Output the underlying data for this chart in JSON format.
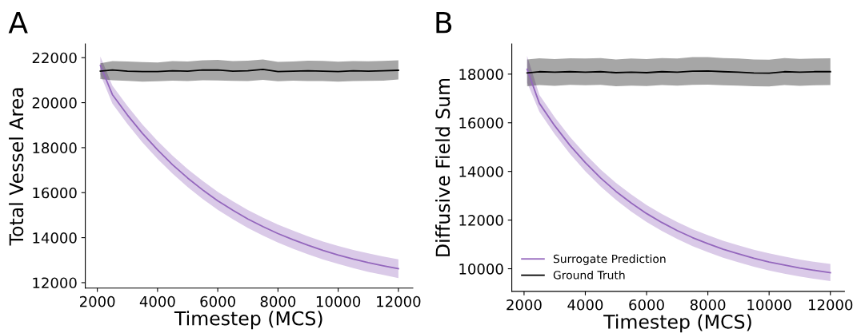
{
  "chart_data": [
    {
      "type": "line",
      "title": "A",
      "xlabel": "Timestep (MCS)",
      "ylabel": "Total Vessel Area",
      "xlim": [
        1600,
        12480
      ],
      "ylim": [
        11760,
        22610
      ],
      "xticks": [
        2000,
        4000,
        6000,
        8000,
        10000,
        12000
      ],
      "yticks": [
        12000,
        14000,
        16000,
        18000,
        20000,
        22000
      ],
      "grid": false,
      "legend": false,
      "marker": "none",
      "line_style": "solid",
      "x": [
        2100,
        2500,
        3000,
        3500,
        4000,
        4500,
        5000,
        5500,
        6000,
        6500,
        7000,
        7500,
        8000,
        8500,
        9000,
        9500,
        10000,
        10500,
        11000,
        11500,
        12000
      ],
      "series": [
        {
          "color": "#9467bd",
          "values": [
            21650,
            20360,
            19450,
            18630,
            17900,
            17240,
            16650,
            16120,
            15640,
            15220,
            14830,
            14490,
            14180,
            13910,
            13660,
            13430,
            13230,
            13050,
            12890,
            12750,
            12620
          ],
          "lower": [
            21250,
            19960,
            19050,
            18230,
            17500,
            16840,
            16250,
            15720,
            15240,
            14820,
            14430,
            14090,
            13780,
            13510,
            13260,
            13030,
            12830,
            12650,
            12480,
            12340,
            12200
          ],
          "upper": [
            22050,
            20760,
            19850,
            19030,
            18300,
            17640,
            17050,
            16520,
            16040,
            15620,
            15230,
            14890,
            14580,
            14310,
            14060,
            13830,
            13630,
            13450,
            13300,
            13160,
            13040
          ]
        },
        {
          "color": "#000000",
          "values": [
            21400,
            21450,
            21400,
            21380,
            21380,
            21420,
            21400,
            21450,
            21450,
            21400,
            21420,
            21480,
            21380,
            21400,
            21420,
            21400,
            21380,
            21420,
            21400,
            21420,
            21440
          ],
          "lower": [
            21050,
            21000,
            20970,
            20930,
            20950,
            20980,
            20960,
            21000,
            20990,
            20970,
            20960,
            21010,
            20950,
            20980,
            20960,
            20960,
            20930,
            20960,
            20970,
            20980,
            21030
          ],
          "upper": [
            21750,
            21850,
            21830,
            21800,
            21790,
            21850,
            21830,
            21880,
            21900,
            21850,
            21870,
            21920,
            21810,
            21830,
            21870,
            21860,
            21820,
            21850,
            21840,
            21860,
            21880
          ]
        }
      ]
    },
    {
      "type": "line",
      "title": "B",
      "xlabel": "Timestep (MCS)",
      "ylabel": "Diffusive Field Sum",
      "xlim": [
        1600,
        12460
      ],
      "ylim": [
        9070,
        19240
      ],
      "xticks": [
        2000,
        4000,
        6000,
        8000,
        10000,
        12000
      ],
      "yticks": [
        10000,
        12000,
        14000,
        16000,
        18000
      ],
      "grid": false,
      "legend": "lower left",
      "marker": "none",
      "line_style": "solid",
      "x": [
        2100,
        2500,
        3000,
        3500,
        4000,
        4500,
        5000,
        5500,
        6000,
        6500,
        7000,
        7500,
        8000,
        8500,
        9000,
        9500,
        10000,
        10500,
        11000,
        11500,
        12000
      ],
      "series": [
        {
          "name": "Surrogate Prediction",
          "color": "#9467bd",
          "values": [
            18200,
            16800,
            15880,
            15070,
            14360,
            13730,
            13180,
            12700,
            12270,
            11900,
            11570,
            11280,
            11030,
            10800,
            10610,
            10430,
            10280,
            10150,
            10030,
            9930,
            9840
          ],
          "lower": [
            17650,
            16450,
            15530,
            14720,
            14010,
            13380,
            12830,
            12350,
            11920,
            11550,
            11220,
            10930,
            10680,
            10450,
            10260,
            10080,
            9930,
            9800,
            9680,
            9580,
            9490
          ],
          "upper": [
            18750,
            17150,
            16230,
            15420,
            14710,
            14080,
            13530,
            13050,
            12620,
            12250,
            11920,
            11630,
            11380,
            11150,
            10960,
            10780,
            10630,
            10500,
            10380,
            10280,
            10200
          ]
        },
        {
          "name": "Ground Truth",
          "color": "#000000",
          "values": [
            18050,
            18100,
            18080,
            18100,
            18080,
            18100,
            18060,
            18080,
            18060,
            18100,
            18080,
            18120,
            18130,
            18100,
            18080,
            18050,
            18040,
            18100,
            18080,
            18100,
            18100
          ],
          "lower": [
            17500,
            17550,
            17520,
            17560,
            17540,
            17560,
            17500,
            17530,
            17510,
            17550,
            17530,
            17560,
            17570,
            17540,
            17530,
            17500,
            17490,
            17550,
            17520,
            17540,
            17550
          ],
          "upper": [
            18600,
            18650,
            18620,
            18650,
            18640,
            18660,
            18600,
            18640,
            18620,
            18660,
            18640,
            18700,
            18700,
            18660,
            18640,
            18600,
            18590,
            18660,
            18630,
            18640,
            18650
          ]
        }
      ]
    }
  ]
}
